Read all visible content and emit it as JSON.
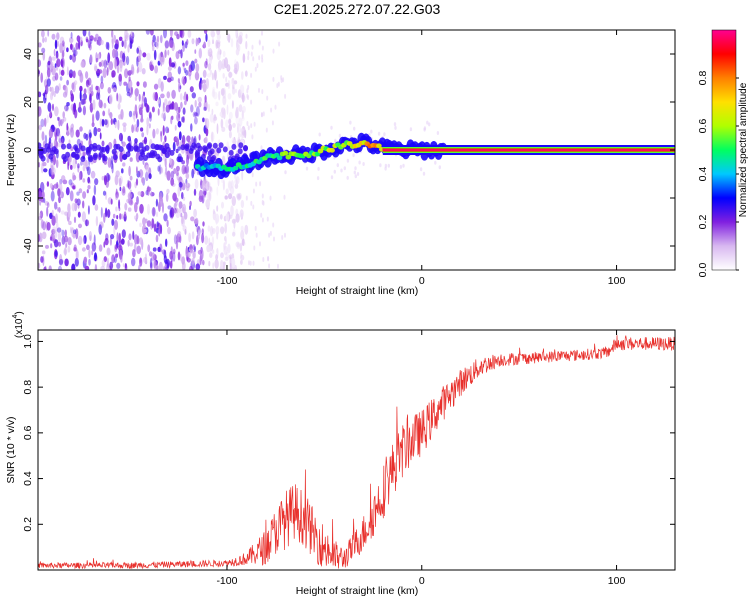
{
  "title": "C2E1.2025.272.07.22.G03",
  "chart_data": [
    {
      "type": "heatmap",
      "title": "C2E1.2025.272.07.22.G03",
      "xlabel": "Height of straight line (km)",
      "ylabel": "Frequency (Hz)",
      "xlim": [
        -197,
        130
      ],
      "ylim": [
        -50,
        50
      ],
      "xticks": [
        -100,
        0,
        100
      ],
      "xtick_labels": [
        "-100",
        "0",
        "100"
      ],
      "yticks": [
        -40,
        -20,
        0,
        20,
        40
      ],
      "ytick_labels": [
        "-40",
        "-20",
        "0",
        "20",
        "40"
      ],
      "colorbar": {
        "label": "Normalized spectral amplitude",
        "range": [
          0,
          1
        ],
        "ticks": [
          0.0,
          0.2,
          0.4,
          0.6,
          0.8
        ],
        "tick_labels": [
          "0.0",
          "0.2",
          "0.4",
          "0.6",
          "0.8"
        ],
        "colors": [
          "#ffffff",
          "#d8b8f0",
          "#8020e0",
          "#0000ff",
          "#00c8ff",
          "#00ff60",
          "#b0ff00",
          "#ffe000",
          "#ff8000",
          "#ff0000",
          "#ff0090"
        ]
      },
      "signal_track": [
        {
          "x": -110,
          "y": -7,
          "amp": 0.45
        },
        {
          "x": -100,
          "y": -8,
          "amp": 0.5
        },
        {
          "x": -90,
          "y": -6,
          "amp": 0.5
        },
        {
          "x": -80,
          "y": -3,
          "amp": 0.55
        },
        {
          "x": -70,
          "y": -2,
          "amp": 0.6
        },
        {
          "x": -60,
          "y": -2,
          "amp": 0.6
        },
        {
          "x": -50,
          "y": 0,
          "amp": 0.65
        },
        {
          "x": -40,
          "y": 2,
          "amp": 0.7
        },
        {
          "x": -30,
          "y": 3,
          "amp": 0.8
        },
        {
          "x": -20,
          "y": 1,
          "amp": 0.85
        },
        {
          "x": -10,
          "y": 0,
          "amp": 0.9
        },
        {
          "x": 0,
          "y": 0,
          "amp": 0.95
        },
        {
          "x": 10,
          "y": 0,
          "amp": 0.95
        },
        {
          "x": 130,
          "y": 0,
          "amp": 0.95
        }
      ],
      "noise_region": {
        "x_from": -197,
        "x_to": -90,
        "y_from": -50,
        "y_to": 50
      }
    },
    {
      "type": "line",
      "series": [
        {
          "name": "SNR",
          "color": "#e8302c"
        }
      ],
      "xlabel": "Height of straight line (km)",
      "ylabel": "SNR (10 * v/v)",
      "scale_label": "(x10",
      "scale_exponent": "4",
      "xlim": [
        -197,
        130
      ],
      "ylim": [
        0,
        1.05
      ],
      "xticks": [
        -100,
        0,
        100
      ],
      "xtick_labels": [
        "-100",
        "0",
        "100"
      ],
      "yticks": [
        0.2,
        0.4,
        0.6,
        0.8,
        1.0
      ],
      "ytick_labels": [
        "0.2",
        "0.4",
        "0.6",
        "0.8",
        "1.0"
      ],
      "trend": {
        "x": [
          -197,
          -150,
          -100,
          -90,
          -80,
          -75,
          -70,
          -65,
          -60,
          -55,
          -50,
          -45,
          -40,
          -35,
          -30,
          -25,
          -20,
          -15,
          -10,
          -5,
          0,
          5,
          10,
          20,
          30,
          40,
          60,
          80,
          95,
          100,
          110,
          130
        ],
        "y": [
          0.02,
          0.02,
          0.03,
          0.05,
          0.1,
          0.17,
          0.22,
          0.26,
          0.22,
          0.15,
          0.1,
          0.06,
          0.05,
          0.1,
          0.16,
          0.24,
          0.34,
          0.44,
          0.52,
          0.57,
          0.6,
          0.66,
          0.72,
          0.82,
          0.89,
          0.92,
          0.93,
          0.94,
          0.95,
          0.99,
          0.99,
          0.99
        ]
      },
      "noise": {
        "x": [
          -197,
          -100,
          -90,
          -80,
          -70,
          -60,
          -50,
          -40,
          -30,
          -20,
          -10,
          0,
          10,
          20,
          40,
          60,
          95,
          100,
          130
        ],
        "amp": [
          0.012,
          0.015,
          0.03,
          0.08,
          0.13,
          0.12,
          0.1,
          0.05,
          0.08,
          0.12,
          0.12,
          0.1,
          0.08,
          0.06,
          0.03,
          0.025,
          0.025,
          0.03,
          0.03
        ]
      }
    }
  ]
}
